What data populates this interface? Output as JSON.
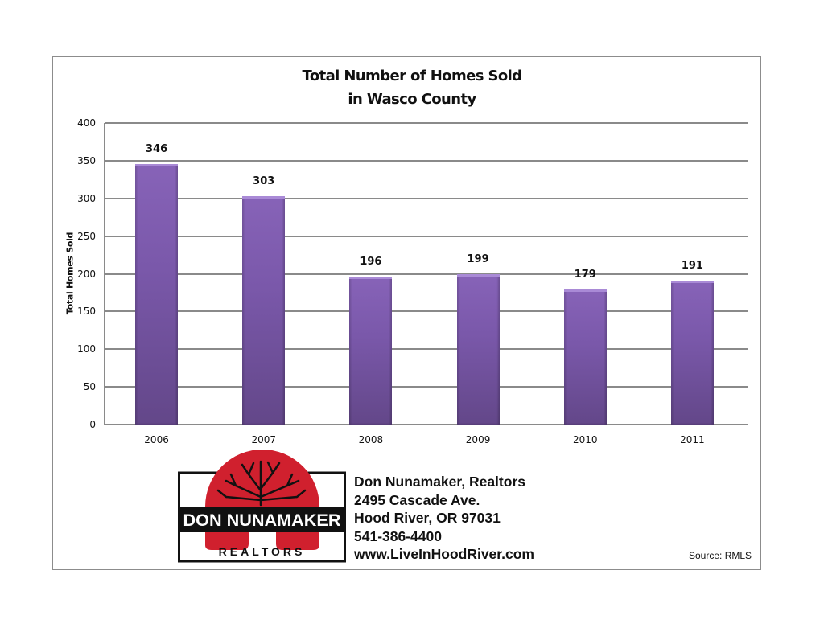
{
  "chart_data": {
    "type": "bar",
    "title": "Total Number of Homes Sold in Wasco County",
    "title_lines": [
      "Total Number of Homes Sold",
      "in Wasco County"
    ],
    "xlabel": "",
    "ylabel": "Total Homes Sold",
    "categories": [
      "2006",
      "2007",
      "2008",
      "2009",
      "2010",
      "2011"
    ],
    "values": [
      346,
      303,
      196,
      199,
      179,
      191
    ],
    "data_labels": [
      "346",
      "303",
      "196",
      "199",
      "179",
      "191"
    ],
    "ylim": [
      0,
      400
    ],
    "yticks": [
      "0",
      "50",
      "100",
      "150",
      "200",
      "250",
      "300",
      "350",
      "400"
    ],
    "grid": true,
    "legend": null,
    "bar_color": "#7a58aa"
  },
  "logo": {
    "name_text": "DON NUNAMAKER",
    "sub_text": "REALTORS",
    "arch_color": "#d0202e"
  },
  "contact": {
    "company": "Don Nunamaker, Realtors",
    "address": "2495 Cascade Ave.",
    "city": "Hood River, OR 97031",
    "phone": "541-386-4400",
    "website": "www.LiveInHoodRiver.com"
  },
  "source": "Source: RMLS"
}
